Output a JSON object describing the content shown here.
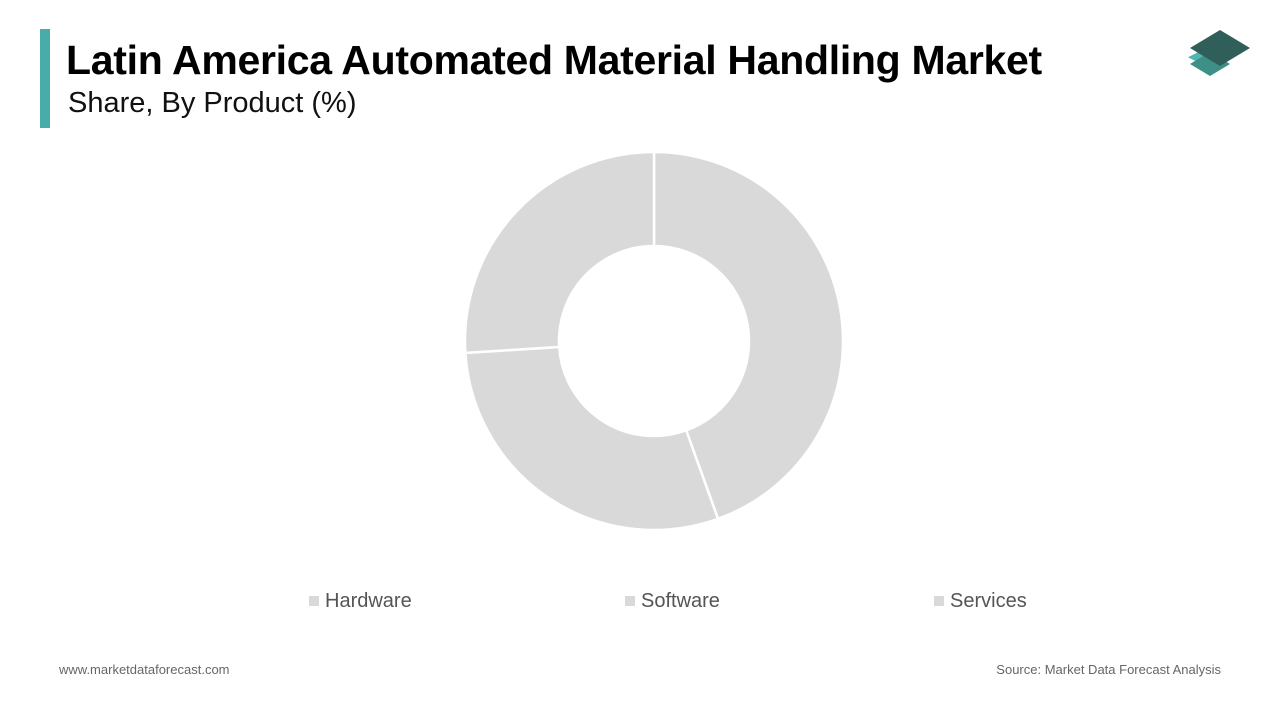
{
  "header": {
    "title": "Latin America Automated Material Handling Market",
    "subtitle": "Share, By Product (%)",
    "accent_color": "#4aacaa",
    "logo_icon": "layered-stack-icon"
  },
  "chart_data": {
    "type": "pie",
    "variant": "donut",
    "title": "Latin America Automated Material Handling Market",
    "subtitle": "Share, By Product (%)",
    "categories": [
      "Hardware",
      "Software",
      "Services"
    ],
    "values": [
      44.5,
      29.5,
      26.0
    ],
    "colors": [
      "#d9d9d9",
      "#d9d9d9",
      "#d9d9d9"
    ],
    "legend_position": "bottom",
    "start_angle": "top",
    "direction": "clockwise"
  },
  "legend": {
    "items": [
      {
        "label": "Hardware"
      },
      {
        "label": "Software"
      },
      {
        "label": "Services"
      }
    ]
  },
  "footer": {
    "website": "www.marketdataforecast.com",
    "source": "Source: Market Data Forecast Analysis"
  }
}
